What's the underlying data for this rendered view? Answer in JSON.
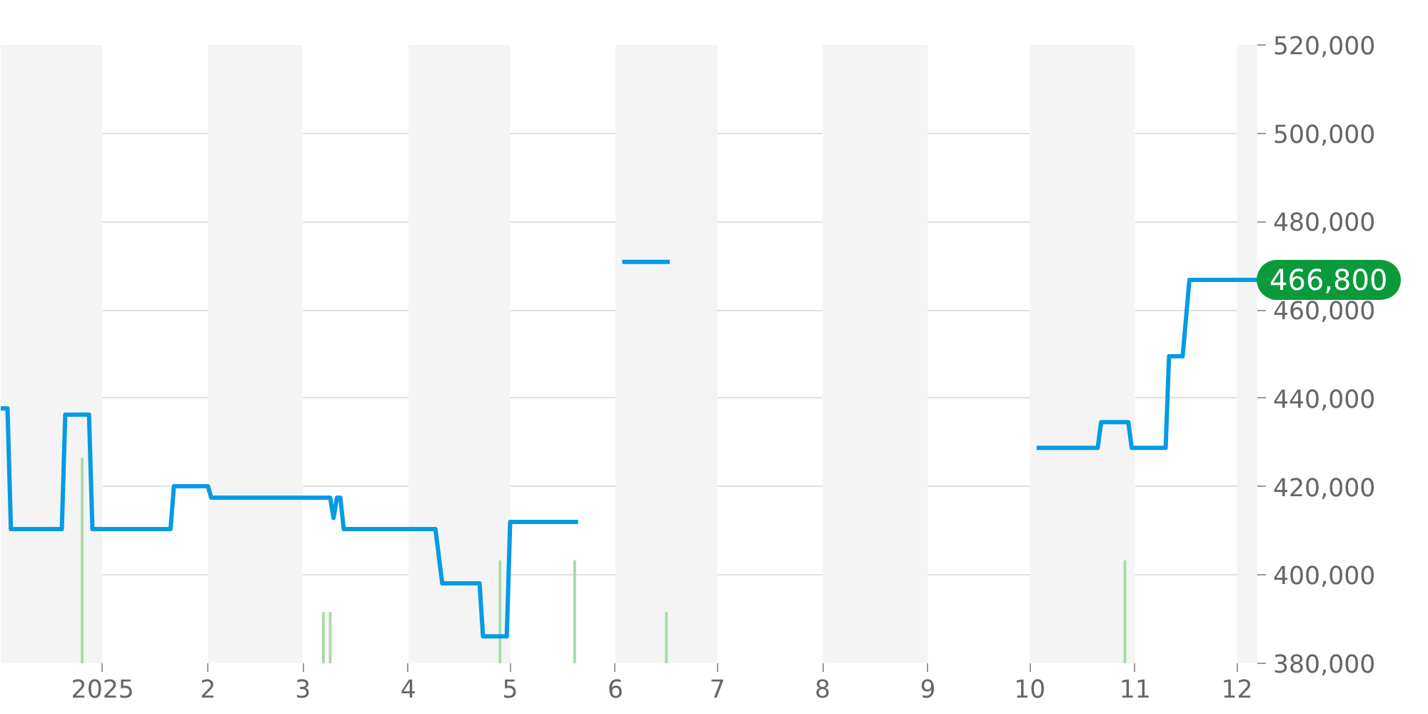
{
  "chart_data": {
    "type": "line",
    "xlim": [
      "2024-12-02",
      "2025-12-07"
    ],
    "xticks": [
      {
        "value": "2025-01-01",
        "label": "2025"
      },
      {
        "value": "2025-02-01",
        "label": "2"
      },
      {
        "value": "2025-03-01",
        "label": "3"
      },
      {
        "value": "2025-04-01",
        "label": "4"
      },
      {
        "value": "2025-05-01",
        "label": "5"
      },
      {
        "value": "2025-06-01",
        "label": "6"
      },
      {
        "value": "2025-07-01",
        "label": "7"
      },
      {
        "value": "2025-08-01",
        "label": "8"
      },
      {
        "value": "2025-09-01",
        "label": "9"
      },
      {
        "value": "2025-10-01",
        "label": "10"
      },
      {
        "value": "2025-11-01",
        "label": "11"
      },
      {
        "value": "2025-12-01",
        "label": "12"
      }
    ],
    "ylim": [
      380000,
      520000
    ],
    "yticks": [
      {
        "value": 380000,
        "label": "380,000"
      },
      {
        "value": 400000,
        "label": "400,000"
      },
      {
        "value": 420000,
        "label": "420,000"
      },
      {
        "value": 440000,
        "label": "440,000"
      },
      {
        "value": 460000,
        "label": "460,000"
      },
      {
        "value": 480000,
        "label": "480,000"
      },
      {
        "value": 500000,
        "label": "500,000"
      },
      {
        "value": 520000,
        "label": "520,000"
      }
    ],
    "grid": "y",
    "series": [
      {
        "type": "line",
        "color": "#039be5",
        "x": [
          "2024-12-02",
          "2024-12-04",
          "2024-12-05",
          "2024-12-20",
          "2024-12-21",
          "2024-12-28",
          "2024-12-29",
          "2025-01-21",
          "2025-01-22",
          "2025-02-01",
          "2025-02-02",
          "2025-03-09",
          "2025-03-10",
          "2025-03-11",
          "2025-03-12",
          "2025-03-13",
          "2025-04-09",
          "2025-04-11",
          "2025-04-22",
          "2025-04-23",
          "2025-04-30",
          "2025-05-01",
          "2025-05-21",
          "2025-05-27",
          "2025-06-03",
          "2025-06-17",
          "2025-06-25",
          "2025-10-03",
          "2025-10-21",
          "2025-10-22",
          "2025-10-30",
          "2025-10-31",
          "2025-11-10",
          "2025-11-11",
          "2025-11-15",
          "2025-11-17",
          "2025-12-07"
        ],
        "values": [
          437700,
          437700,
          410400,
          410400,
          436300,
          436300,
          410400,
          410400,
          420100,
          420100,
          417500,
          417500,
          412900,
          417500,
          417500,
          410400,
          410400,
          398100,
          398100,
          386100,
          386100,
          412000,
          412000,
          null,
          470900,
          470900,
          null,
          428800,
          428800,
          434600,
          434600,
          428800,
          428800,
          449500,
          449500,
          466800,
          466800
        ]
      },
      {
        "type": "bar",
        "color": "#a5dba5",
        "x": [
          "2024-12-26",
          "2025-03-07",
          "2025-03-09",
          "2025-04-28",
          "2025-05-20",
          "2025-06-16",
          "2025-10-29"
        ],
        "values": [
          426500,
          391600,
          391600,
          403300,
          403300,
          391600,
          403300
        ]
      }
    ],
    "bands": [
      {
        "axis": "x",
        "from": "2024-12-02",
        "to": "2025-01-01",
        "color": "#f4f4f4"
      },
      {
        "axis": "x",
        "from": "2025-02-01",
        "to": "2025-03-01",
        "color": "#f4f4f4"
      },
      {
        "axis": "x",
        "from": "2025-04-01",
        "to": "2025-05-01",
        "color": "#f4f4f4"
      },
      {
        "axis": "x",
        "from": "2025-06-01",
        "to": "2025-07-01",
        "color": "#f4f4f4"
      },
      {
        "axis": "x",
        "from": "2025-08-01",
        "to": "2025-09-01",
        "color": "#f4f4f4"
      },
      {
        "axis": "x",
        "from": "2025-10-01",
        "to": "2025-11-01",
        "color": "#f4f4f4"
      },
      {
        "axis": "x",
        "from": "2025-12-01",
        "to": "2025-12-07",
        "color": "#f4f4f4"
      }
    ],
    "annotations": [
      {
        "text": "466,800",
        "x": "2025-12-07",
        "y": 466800
      }
    ]
  }
}
